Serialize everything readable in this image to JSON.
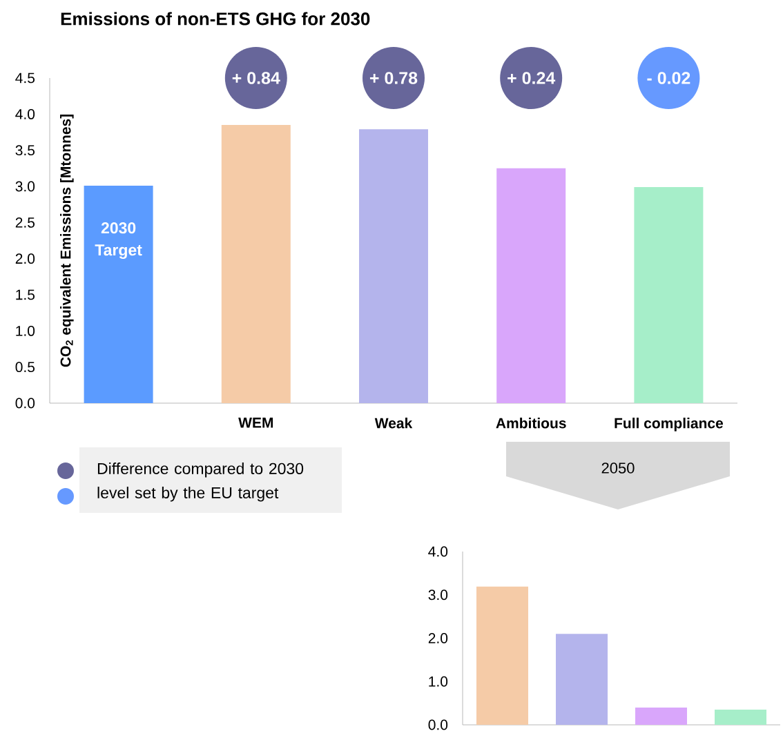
{
  "chart_data": [
    {
      "type": "bar",
      "title": "Emissions of non-ETS GHG for 2030",
      "ylabel": "CO$_{2}$ equivalent Emissions [Mtonnes]",
      "categories": [
        null,
        "WEM",
        "Weak",
        "Ambitious",
        "Full compliance"
      ],
      "values": [
        3.01,
        3.85,
        3.79,
        3.25,
        2.99
      ],
      "colors": [
        "#5b9bff",
        "#f5cba7",
        "#b4b4ec",
        "#d9a6fb",
        "#a6eec9"
      ],
      "ylim": [
        0,
        4.5
      ],
      "yticks": [
        {
          "value": 0,
          "label": "0.0"
        },
        {
          "value": 0.5,
          "label": "0.5"
        },
        {
          "value": 1,
          "label": "1.0"
        },
        {
          "value": 1.5,
          "label": "1.5"
        },
        {
          "value": 2,
          "label": "2.0"
        },
        {
          "value": 2.5,
          "label": "2.5"
        },
        {
          "value": 3,
          "label": "3.0"
        },
        {
          "value": 3.5,
          "label": "3.5"
        },
        {
          "value": 4,
          "label": "4.0"
        },
        {
          "value": 4.5,
          "label": "4.5"
        }
      ],
      "annotations": [
        "2030 Target",
        "+ 0.84",
        "+ 0.78",
        "+ 0.24",
        "- 0.02",
        "Difference compared to 2030 level set by the EU target"
      ]
    },
    {
      "type": "bar",
      "title": "2050",
      "categories": [
        null,
        null,
        null,
        null
      ],
      "values": [
        3.19,
        2.1,
        0.4,
        0.35
      ],
      "colors": [
        "#f5cba7",
        "#b4b4ec",
        "#d9a6fb",
        "#a6eec9"
      ],
      "ylim": [
        0,
        4
      ],
      "yticks": [
        {
          "value": 0,
          "label": "0.0"
        },
        {
          "value": 1,
          "label": "1.0"
        },
        {
          "value": 2,
          "label": "2.0"
        },
        {
          "value": 3,
          "label": "3.0"
        },
        {
          "value": 4,
          "label": "4.0"
        }
      ]
    }
  ]
}
